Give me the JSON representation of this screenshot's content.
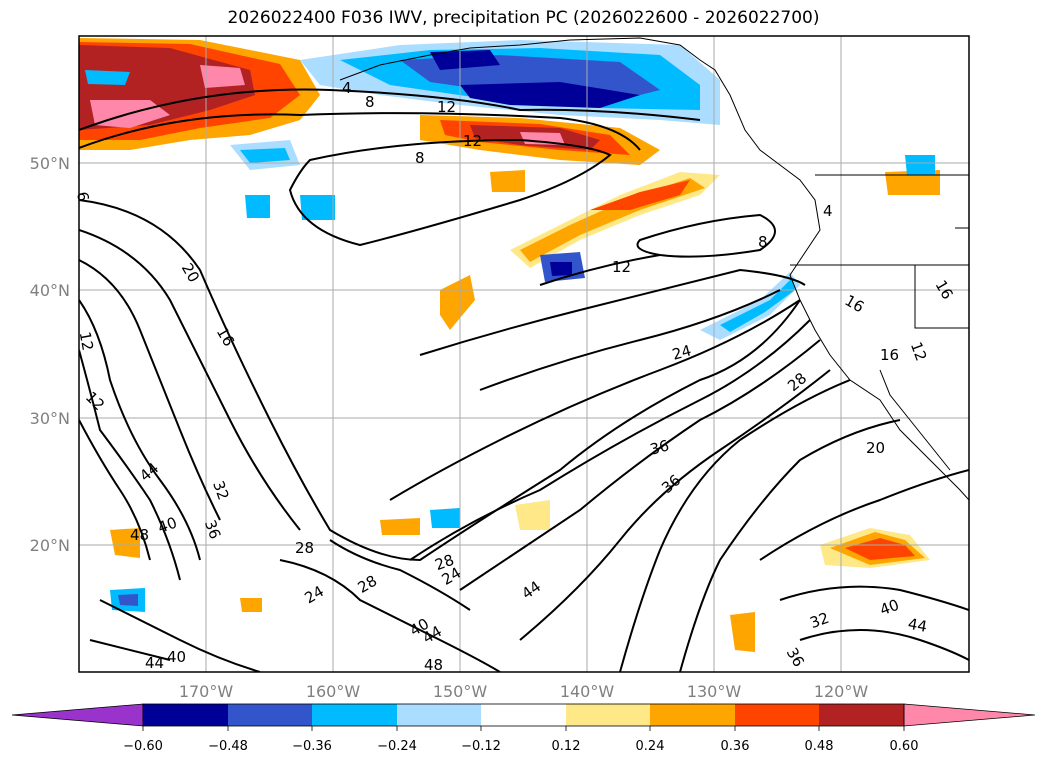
{
  "title": "2026022400 F036 IWV, precipitation PC (2026022600 - 2026022700)",
  "map": {
    "lon_labels": [
      "170°W",
      "160°W",
      "150°W",
      "140°W",
      "130°W",
      "120°W"
    ],
    "lat_labels": [
      "50°N",
      "40°N",
      "30°N",
      "20°N"
    ],
    "contour_labels": [
      {
        "name": "iwv-4-north",
        "text": "4"
      },
      {
        "name": "iwv-8-north",
        "text": "8"
      },
      {
        "name": "iwv-12-north-a",
        "text": "12"
      },
      {
        "name": "iwv-12-north-b",
        "text": "12"
      },
      {
        "name": "iwv-8-mid",
        "text": "8"
      },
      {
        "name": "iwv-4-coast",
        "text": "4"
      },
      {
        "name": "iwv-8-east",
        "text": "8"
      },
      {
        "name": "iwv-12-mid",
        "text": "12"
      },
      {
        "name": "iwv-20-west",
        "text": "20"
      },
      {
        "name": "iwv-16-west",
        "text": "16"
      },
      {
        "name": "iwv-12-far-west-a",
        "text": "12"
      },
      {
        "name": "iwv-12-far-west-b",
        "text": "12"
      },
      {
        "name": "iwv-6-edge",
        "text": "6"
      },
      {
        "name": "iwv-24-mid",
        "text": "24"
      },
      {
        "name": "iwv-16-coast-a",
        "text": "16"
      },
      {
        "name": "iwv-16-coast-b",
        "text": "16"
      },
      {
        "name": "iwv-16-coast-c",
        "text": "16"
      },
      {
        "name": "iwv-12-coast",
        "text": "12"
      },
      {
        "name": "iwv-28-coast",
        "text": "28"
      },
      {
        "name": "iwv-36-mid-a",
        "text": "36"
      },
      {
        "name": "iwv-36-mid-b",
        "text": "36"
      },
      {
        "name": "iwv-20-east",
        "text": "20"
      },
      {
        "name": "iwv-44-west",
        "text": "44"
      },
      {
        "name": "iwv-32-west",
        "text": "32"
      },
      {
        "name": "iwv-36-west",
        "text": "36"
      },
      {
        "name": "iwv-40-west",
        "text": "40"
      },
      {
        "name": "iwv-48-west",
        "text": "48"
      },
      {
        "name": "iwv-28-south-a",
        "text": "28"
      },
      {
        "name": "iwv-28-south-b",
        "text": "28"
      },
      {
        "name": "iwv-24-south",
        "text": "24"
      },
      {
        "name": "iwv-28-south-c",
        "text": "28"
      },
      {
        "name": "iwv-24-south-b",
        "text": "24"
      },
      {
        "name": "iwv-44-south",
        "text": "44"
      },
      {
        "name": "iwv-40-south",
        "text": "40"
      },
      {
        "name": "iwv-44-south-b",
        "text": "44"
      },
      {
        "name": "iwv-48-south",
        "text": "48"
      },
      {
        "name": "iwv-44-far-sw",
        "text": "44"
      },
      {
        "name": "iwv-40-far-sw",
        "text": "40"
      },
      {
        "name": "iwv-40-se",
        "text": "40"
      },
      {
        "name": "iwv-44-se",
        "text": "44"
      },
      {
        "name": "iwv-32-se",
        "text": "32"
      },
      {
        "name": "iwv-36-se",
        "text": "36"
      }
    ]
  },
  "colorbar": {
    "labels": [
      "−0.60",
      "−0.48",
      "−0.36",
      "−0.24",
      "−0.12",
      "0.12",
      "0.24",
      "0.36",
      "0.48",
      "0.60"
    ],
    "colors": [
      "#9933cc",
      "#000099",
      "#3355cc",
      "#00bbff",
      "#aaddff",
      "#ffffff",
      "#ffe888",
      "#ffa500",
      "#ff4400",
      "#b22222",
      "#ff88aa"
    ]
  },
  "shading_colors": {
    "neg_strong": "#000099",
    "neg_mid": "#3355cc",
    "neg_light": "#00bbff",
    "neg_faint": "#aaddff",
    "pos_faint": "#ffe888",
    "pos_mid": "#ffa500",
    "pos_strong": "#ff4400",
    "pos_dark": "#b22222",
    "pos_pink": "#ff88aa"
  }
}
